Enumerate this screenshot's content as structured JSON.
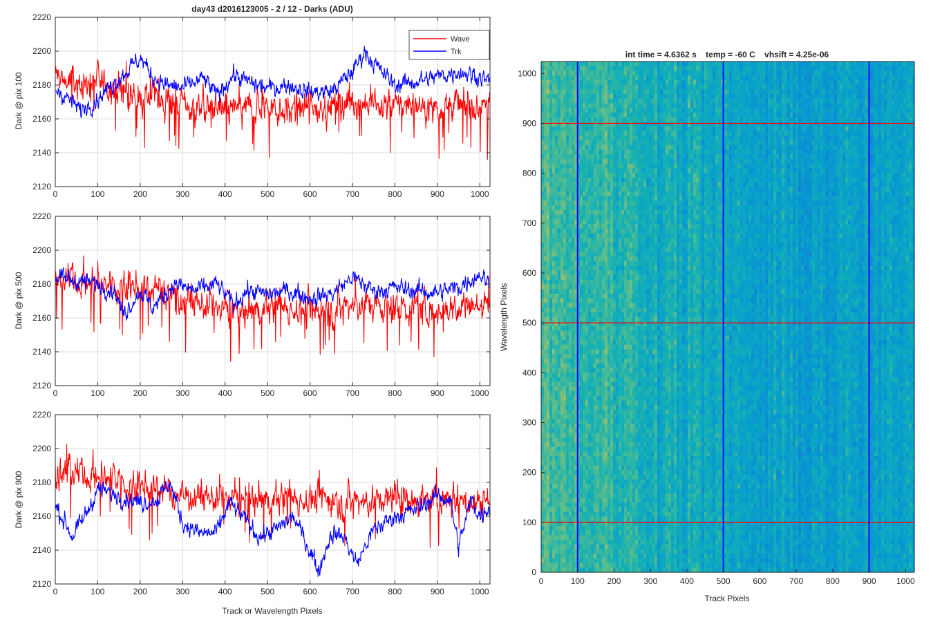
{
  "figure": {
    "title": "day43 d2016123005 - 2 / 12 - Darks (ADU)",
    "right_title": "int time = 4.6362 s    temp = -60 C    vhsift = 4.25e-06"
  },
  "colors": {
    "wave": "#ff0000",
    "trk": "#0000ff",
    "grid": "#dcdcdc",
    "axis": "#262626"
  },
  "chart_data": [
    {
      "type": "line",
      "ylabel": "Dark @ pix 100",
      "xlabel": "",
      "xlim": [
        0,
        1024
      ],
      "ylim": [
        2120,
        2220
      ],
      "xticks": [
        0,
        100,
        200,
        300,
        400,
        500,
        600,
        700,
        800,
        900,
        1000
      ],
      "yticks": [
        2120,
        2140,
        2160,
        2180,
        2200,
        2220
      ],
      "grid": true,
      "legend": {
        "position": "top-right",
        "entries": [
          "Wave",
          "Trk"
        ]
      },
      "series": [
        {
          "name": "Wave",
          "color": "#ff0000",
          "noise": 9,
          "spike": 0.05,
          "spikeDepth": 30,
          "x": [
            0,
            50,
            100,
            150,
            200,
            250,
            300,
            350,
            400,
            450,
            500,
            550,
            600,
            650,
            700,
            750,
            800,
            850,
            900,
            950,
            1000,
            1023
          ],
          "y": [
            2185,
            2180,
            2182,
            2178,
            2172,
            2172,
            2168,
            2166,
            2166,
            2166,
            2168,
            2166,
            2166,
            2168,
            2170,
            2168,
            2168,
            2168,
            2168,
            2168,
            2168,
            2168
          ]
        },
        {
          "name": "Trk",
          "color": "#0000ff",
          "noise": 5,
          "spike": 0,
          "spikeDepth": 0,
          "x": [
            0,
            30,
            60,
            100,
            150,
            200,
            230,
            260,
            300,
            350,
            380,
            420,
            450,
            500,
            550,
            600,
            650,
            700,
            730,
            760,
            800,
            850,
            900,
            950,
            1000,
            1023
          ],
          "y": [
            2178,
            2172,
            2165,
            2172,
            2184,
            2196,
            2185,
            2180,
            2178,
            2184,
            2174,
            2186,
            2182,
            2178,
            2180,
            2176,
            2176,
            2188,
            2200,
            2190,
            2180,
            2182,
            2185,
            2188,
            2185,
            2182
          ]
        }
      ]
    },
    {
      "type": "line",
      "ylabel": "Dark @ pix 500",
      "xlabel": "",
      "xlim": [
        0,
        1024
      ],
      "ylim": [
        2120,
        2220
      ],
      "xticks": [
        0,
        100,
        200,
        300,
        400,
        500,
        600,
        700,
        800,
        900,
        1000
      ],
      "yticks": [
        2120,
        2140,
        2160,
        2180,
        2200,
        2220
      ],
      "grid": true,
      "series": [
        {
          "name": "Wave",
          "color": "#ff0000",
          "noise": 9,
          "spike": 0.05,
          "spikeDepth": 28,
          "x": [
            0,
            50,
            100,
            150,
            200,
            250,
            300,
            350,
            400,
            450,
            500,
            550,
            600,
            650,
            700,
            750,
            800,
            850,
            900,
            950,
            1000,
            1023
          ],
          "y": [
            2182,
            2182,
            2180,
            2180,
            2178,
            2176,
            2172,
            2168,
            2164,
            2164,
            2166,
            2166,
            2164,
            2166,
            2168,
            2168,
            2166,
            2166,
            2166,
            2166,
            2168,
            2170
          ]
        },
        {
          "name": "Trk",
          "color": "#0000ff",
          "noise": 5,
          "spike": 0,
          "spikeDepth": 0,
          "x": [
            0,
            50,
            100,
            140,
            160,
            200,
            230,
            280,
            330,
            380,
            420,
            450,
            500,
            550,
            600,
            650,
            700,
            750,
            800,
            850,
            900,
            950,
            1000,
            1023
          ],
          "y": [
            2184,
            2182,
            2180,
            2176,
            2162,
            2176,
            2166,
            2180,
            2176,
            2180,
            2168,
            2176,
            2174,
            2176,
            2172,
            2174,
            2184,
            2176,
            2178,
            2176,
            2175,
            2178,
            2186,
            2180
          ]
        }
      ]
    },
    {
      "type": "line",
      "ylabel": "Dark @ pix 900",
      "xlabel": "Track or Wavelength Pixels",
      "xlim": [
        0,
        1024
      ],
      "ylim": [
        2120,
        2220
      ],
      "xticks": [
        0,
        100,
        200,
        300,
        400,
        500,
        600,
        700,
        800,
        900,
        1000
      ],
      "yticks": [
        2120,
        2140,
        2160,
        2180,
        2200,
        2220
      ],
      "grid": true,
      "series": [
        {
          "name": "Wave",
          "color": "#ff0000",
          "noise": 9,
          "spike": 0.04,
          "spikeDepth": 28,
          "x": [
            0,
            50,
            100,
            150,
            200,
            250,
            300,
            350,
            400,
            450,
            500,
            550,
            600,
            650,
            700,
            750,
            800,
            850,
            900,
            950,
            1000,
            1023
          ],
          "y": [
            2186,
            2184,
            2184,
            2180,
            2178,
            2176,
            2172,
            2172,
            2170,
            2170,
            2170,
            2170,
            2170,
            2170,
            2170,
            2168,
            2170,
            2170,
            2170,
            2170,
            2170,
            2170
          ]
        },
        {
          "name": "Trk",
          "color": "#0000ff",
          "noise": 5,
          "spike": 0,
          "spikeDepth": 0,
          "x": [
            0,
            20,
            40,
            70,
            100,
            150,
            200,
            240,
            270,
            300,
            340,
            380,
            410,
            440,
            480,
            520,
            560,
            600,
            620,
            650,
            680,
            710,
            750,
            800,
            850,
            900,
            930,
            950,
            980,
            1000,
            1023
          ],
          "y": [
            2166,
            2158,
            2148,
            2160,
            2176,
            2172,
            2168,
            2170,
            2180,
            2156,
            2150,
            2150,
            2168,
            2160,
            2148,
            2152,
            2160,
            2140,
            2128,
            2150,
            2148,
            2132,
            2152,
            2160,
            2164,
            2172,
            2170,
            2142,
            2170,
            2160,
            2166
          ]
        }
      ]
    },
    {
      "type": "heatmap",
      "title": "int time = 4.6362 s    temp = -60 C    vhsift = 4.25e-06",
      "xlabel": "Track Pixels",
      "ylabel": "Wavelength Pixels",
      "xlim": [
        0,
        1024
      ],
      "ylim": [
        0,
        1024
      ],
      "xticks": [
        0,
        100,
        200,
        300,
        400,
        500,
        600,
        700,
        800,
        900,
        1000
      ],
      "yticks": [
        0,
        100,
        200,
        300,
        400,
        500,
        600,
        700,
        800,
        900,
        1000
      ],
      "grid": false,
      "colormap": "parula",
      "vertical_markers": [
        100,
        500,
        900
      ],
      "horizontal_markers": [
        100,
        500,
        900
      ],
      "vertical_marker_color": "#0000ff",
      "horizontal_marker_color": "#ff0000"
    }
  ]
}
